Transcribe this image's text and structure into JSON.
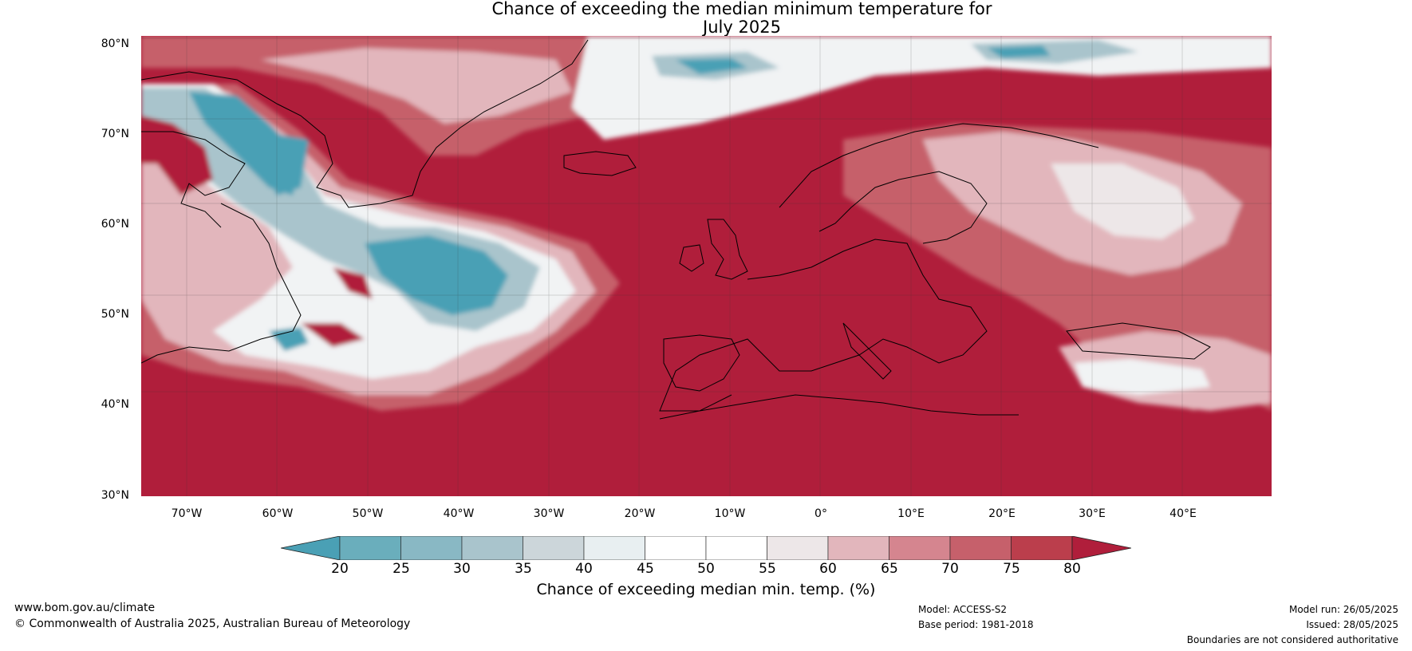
{
  "title_line1": "Chance of exceeding the median minimum temperature for",
  "title_line2": "July 2025",
  "lat_labels": [
    "80°N",
    "70°N",
    "60°N",
    "50°N",
    "40°N",
    "30°N"
  ],
  "lon_labels": [
    "70°W",
    "60°W",
    "50°W",
    "40°W",
    "30°W",
    "20°W",
    "10°W",
    "0°",
    "10°E",
    "20°E",
    "30°E",
    "40°E"
  ],
  "colorbar": {
    "ticks": [
      "20",
      "25",
      "30",
      "35",
      "40",
      "45",
      "50",
      "55",
      "60",
      "65",
      "70",
      "75",
      "80"
    ],
    "colors": [
      "#4aa0b5",
      "#6aaebc",
      "#89b8c4",
      "#a9c4cc",
      "#ccd6da",
      "#e8eff1",
      "#ffffff",
      "#ffffff",
      "#ede7e8",
      "#e2b6bc",
      "#d5858f",
      "#c6606b",
      "#bb3e4c",
      "#b01e3b"
    ],
    "title": "Chance of exceeding median min. temp. (%)"
  },
  "map_colors": {
    "high": "#b01e3b",
    "mid_high": "#c6606b",
    "light_pink": "#e2b6bc",
    "near_white": "#f1f3f4",
    "light_blue": "#a9c4cc",
    "blue": "#4aa0b5",
    "grid": "#444444",
    "coast": "#000000",
    "border": "#888888"
  },
  "footer": {
    "website": "www.bom.gov.au/climate",
    "copyright": "© Commonwealth of Australia 2025, Australian Bureau of Meteorology",
    "model": "Model: ACCESS-S2",
    "base_period": "Base period: 1981-2018",
    "model_run": "Model run: 26/05/2025",
    "issued": "Issued: 28/05/2025",
    "disclaimer": "Boundaries are not considered authoritative"
  }
}
